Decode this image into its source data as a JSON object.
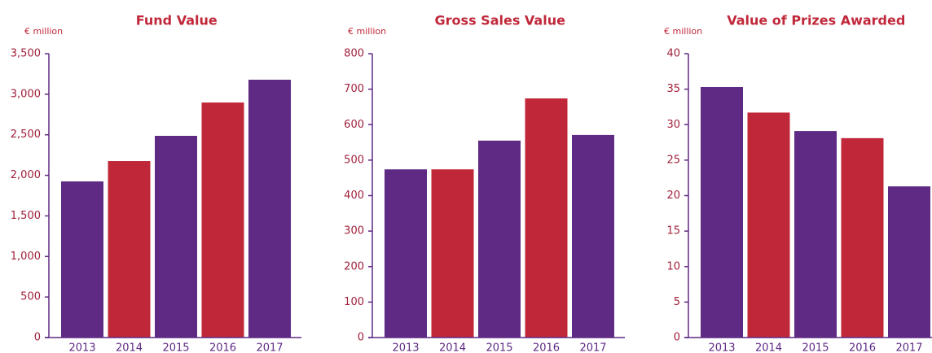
{
  "chart_data": [
    {
      "type": "bar",
      "title": "Fund Value",
      "y_label": "€ million",
      "categories": [
        "2013",
        "2014",
        "2015",
        "2016",
        "2017"
      ],
      "values": [
        1925,
        2176,
        2487,
        2898,
        3179
      ],
      "colors": [
        "#5e2a84",
        "#c0283a",
        "#5e2a84",
        "#c0283a",
        "#5e2a84"
      ],
      "ylim": [
        0,
        3500
      ],
      "yticks": [
        0,
        500,
        {
          "value": 1000,
          "label": "1,000"
        },
        {
          "value": 1500,
          "label": "1,500"
        },
        {
          "value": 2000,
          "label": "2,000"
        },
        {
          "value": 2500,
          "label": "2,500"
        },
        {
          "value": 3000,
          "label": "3,000"
        },
        {
          "value": 3500,
          "label": "3,500"
        }
      ]
    },
    {
      "type": "bar",
      "title": "Gross Sales Value",
      "y_label": "€ million",
      "categories": [
        "2013",
        "2014",
        "2015",
        "2016",
        "2017"
      ],
      "values": [
        474,
        474,
        555,
        674,
        571
      ],
      "colors": [
        "#5e2a84",
        "#c0283a",
        "#5e2a84",
        "#c0283a",
        "#5e2a84"
      ],
      "ylim": [
        0,
        800
      ],
      "yticks": [
        0,
        100,
        200,
        300,
        400,
        500,
        600,
        700,
        800
      ]
    },
    {
      "type": "bar",
      "title": "Value of Prizes Awarded",
      "y_label": "€ million",
      "categories": [
        "2013",
        "2014",
        "2015",
        "2016",
        "2017"
      ],
      "values": [
        35.3,
        31.7,
        29.1,
        28.1,
        21.3
      ],
      "colors": [
        "#5e2a84",
        "#c0283a",
        "#5e2a84",
        "#c0283a",
        "#5e2a84"
      ],
      "ylim": [
        0,
        40
      ],
      "yticks": [
        0,
        5,
        10,
        15,
        20,
        25,
        30,
        35,
        40
      ]
    }
  ]
}
